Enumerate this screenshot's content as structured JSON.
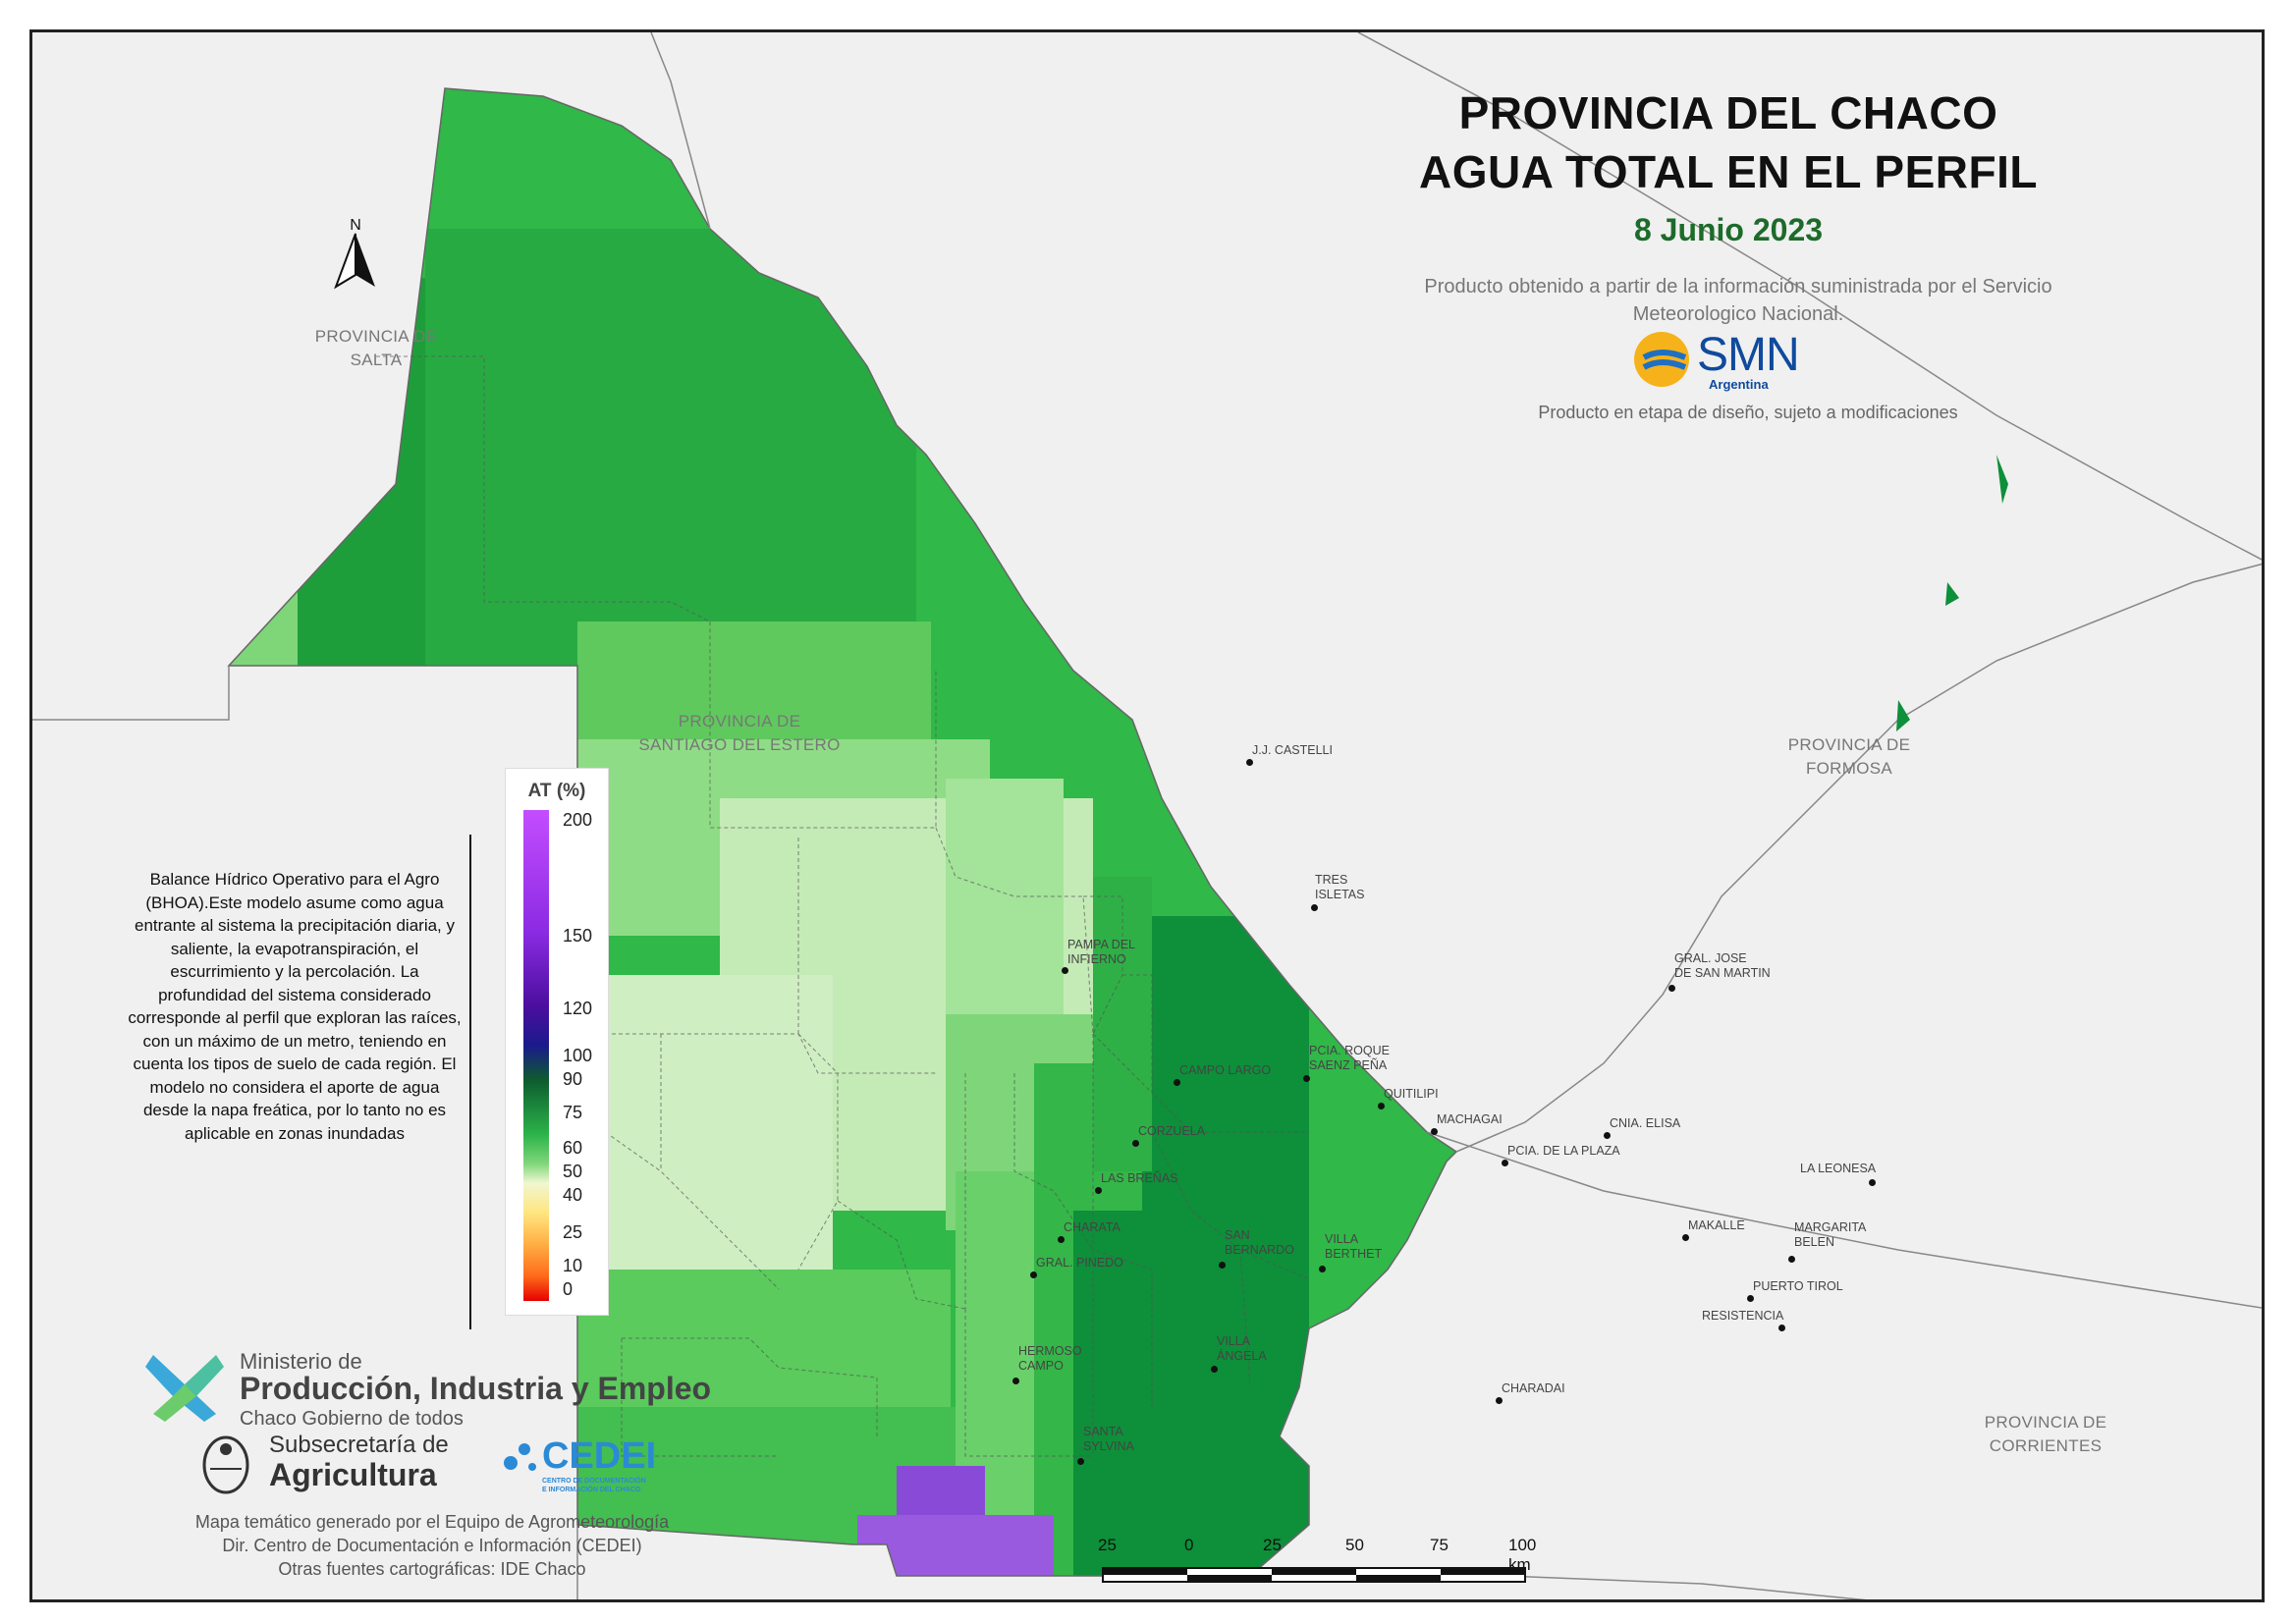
{
  "title_line1": "PROVINCIA DEL CHACO",
  "title_line2": "AGUA TOTAL EN EL PERFIL",
  "date": "8 Junio 2023",
  "source_note": "Producto obtenido a partir de la información suministrada por el Servicio Meteorologico Nacional.",
  "smn_logo": {
    "name": "SMN",
    "sub": "Argentina"
  },
  "design_note": "Producto en etapa de diseño, sujeto a modificaciones",
  "north_label": "N",
  "provinces": {
    "salta": "PROVINCIA DE\nSALTA",
    "santiago": "PROVINCIA DE\nSANTIAGO DEL ESTERO",
    "formosa": "PROVINCIA DE\nFORMOSA",
    "corrientes": "PROVINCIA DE\nCORRIENTES"
  },
  "legend": {
    "title": "AT (%)",
    "ticks": [
      "200",
      "150",
      "120",
      "100",
      "90",
      "75",
      "60",
      "50",
      "40",
      "25",
      "10",
      "0"
    ],
    "colors": {
      "wet": "#9b30ff",
      "mid": "#1f8a3a",
      "dry": "#e60000"
    }
  },
  "description": "Balance Hídrico Operativo para el Agro (BHOA).Este modelo asume como agua entrante al sistema la precipitación diaria, y saliente, la evapotranspiración, el escurrimiento y la percolación. La profundidad del sistema considerado corresponde al perfil que exploran las raíces, con un máximo de un metro, teniendo en cuenta los tipos de suelo de cada región. El modelo no considera el aporte de agua desde la napa freática, por lo tanto no es aplicable en zonas inundadas",
  "towns": [
    "J.J. CASTELLI",
    "TRES\nISLETAS",
    "PAMPA DEL\nINFIERNO",
    "GRAL. JOSE\nDE SAN MARTIN",
    "CAMPO LARGO",
    "PCIA. ROQUE\nSAENZ PEÑA",
    "QUITILIPI",
    "MACHAGAI",
    "CNIA. ELISA",
    "CORZUELA",
    "PCIA. DE LA PLAZA",
    "LA LEONESA",
    "LAS BREÑAS",
    "CHARATA",
    "SAN\nBERNARDO",
    "VILLA\nBERTHET",
    "MAKALLE",
    "MARGARITA\nBELEN",
    "GRAL. PINEDO",
    "PUERTO TIROL",
    "RESISTENCIA",
    "HERMOSO\nCAMPO",
    "VILLA\nÁNGELA",
    "CHARADAI",
    "SANTA\nSYLVINA"
  ],
  "ministry": {
    "line1": "Ministerio de",
    "line2": "Producción, Industria y Empleo",
    "line3": "Chaco Gobierno de todos"
  },
  "subsecretaria": {
    "line1": "Subsecretaría de",
    "line2": "Agricultura"
  },
  "cedei": {
    "name": "CEDEI",
    "sub1": "CENTRO DE DOCUMENTACIÓN",
    "sub2": "E INFORMACIÓN DEL CHACO"
  },
  "credits": [
    "Mapa temático generado por el Equipo de Agrometeorología",
    "Dir. Centro de Documentación e Información (CEDEI)",
    "Otras fuentes cartográficas: IDE Chaco"
  ],
  "scale_labels": [
    "25",
    "0",
    "25",
    "50",
    "75",
    "100 km"
  ],
  "colors": {
    "background": "#f0f0f0",
    "title_date": "#1d6b2a",
    "dark_green": "#0e8f3a",
    "light_green": "#cfeec2",
    "purple": "#8a4ad8"
  }
}
